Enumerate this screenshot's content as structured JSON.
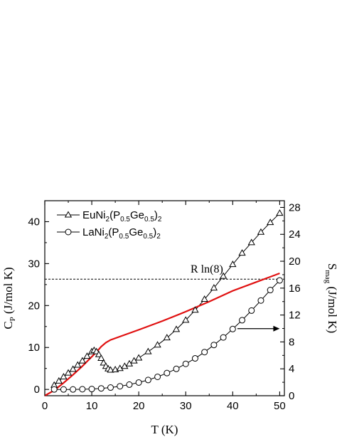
{
  "chart_data": {
    "type": "line",
    "xlabel": {
      "main": "T (K)"
    },
    "ylabel_left": {
      "main": "C",
      "sub": "P",
      "rest": " (J/mol K)"
    },
    "ylabel_right": {
      "main": "S",
      "sub": "mag",
      "rest": " (J/mol K)"
    },
    "xlim": [
      0,
      51
    ],
    "ylim_left": [
      -1.5,
      45
    ],
    "ylim_right": [
      0,
      29
    ],
    "x_ticks": [
      0,
      10,
      20,
      30,
      40,
      50
    ],
    "y_left_ticks": [
      0,
      10,
      20,
      30,
      40
    ],
    "y_right_ticks": [
      0,
      4,
      8,
      12,
      16,
      20,
      24,
      28
    ],
    "x_tick_labels": [
      "0",
      "10",
      "20",
      "30",
      "40",
      "50"
    ],
    "y_left_tick_labels": [
      "0",
      "10",
      "20",
      "30",
      "40"
    ],
    "y_right_tick_labels": [
      "0",
      "4",
      "8",
      "12",
      "16",
      "20",
      "24",
      "28"
    ],
    "reference_line": {
      "y": 26.3,
      "label": "R ln(8)"
    },
    "arrow_annotation": {
      "from_x": 41,
      "to_x": 50,
      "y": 14.5,
      "direction": "right-axis"
    },
    "legend": {
      "placement": "top-left",
      "entries": [
        {
          "prefix": "EuNi",
          "s1": "2",
          "mid1": "(P",
          "s2": "0.5",
          "mid2": "Ge",
          "s3": "0.5",
          "mid3": ")",
          "s4": "2",
          "marker": "triangle"
        },
        {
          "prefix": "LaNi",
          "s1": "2",
          "mid1": "(P",
          "s2": "0.5",
          "mid2": "Ge",
          "s3": "0.5",
          "mid3": ")",
          "s4": "2",
          "marker": "circle"
        }
      ]
    },
    "series": [
      {
        "marker": "triangle",
        "axis": "left",
        "x": [
          2,
          3,
          4,
          5,
          6,
          7,
          8,
          9,
          10,
          10.5,
          11,
          11.5,
          12,
          12.5,
          13,
          13.5,
          14,
          15,
          16,
          17,
          18,
          19,
          20,
          22,
          24,
          26,
          28,
          30,
          32,
          34,
          36,
          38,
          40,
          42,
          44,
          46,
          48,
          50
        ],
        "y": [
          1.0,
          2.0,
          3.0,
          3.9,
          4.8,
          5.8,
          6.8,
          7.9,
          9.0,
          9.3,
          9.0,
          8.3,
          7.4,
          6.3,
          5.5,
          4.9,
          4.6,
          4.7,
          5.0,
          5.5,
          6.1,
          6.8,
          7.5,
          9.0,
          10.6,
          12.3,
          14.3,
          16.5,
          18.9,
          21.5,
          24.2,
          27.0,
          29.8,
          32.5,
          35.0,
          37.5,
          39.8,
          42.0
        ]
      },
      {
        "marker": "circle",
        "axis": "left",
        "x": [
          2,
          4,
          6,
          8,
          10,
          12,
          14,
          16,
          18,
          20,
          22,
          24,
          26,
          28,
          30,
          32,
          34,
          36,
          38,
          40,
          42,
          44,
          46,
          48,
          50
        ],
        "y": [
          0.0,
          0.0,
          0.0,
          0.05,
          0.1,
          0.25,
          0.45,
          0.75,
          1.15,
          1.65,
          2.25,
          3.0,
          3.9,
          4.9,
          6.1,
          7.4,
          8.9,
          10.6,
          12.4,
          14.4,
          16.5,
          18.8,
          21.2,
          23.7,
          26.0
        ]
      },
      {
        "marker": "none",
        "axis": "right",
        "color": "#e01010",
        "x": [
          0,
          2,
          4,
          6,
          8,
          10,
          11,
          12,
          13,
          14,
          16,
          20,
          25,
          30,
          35,
          40,
          45,
          50
        ],
        "y": [
          0,
          0.8,
          1.9,
          3.1,
          4.4,
          5.8,
          6.5,
          7.3,
          7.9,
          8.3,
          8.8,
          9.8,
          11.1,
          12.5,
          14.0,
          15.6,
          16.9,
          18.2
        ]
      }
    ]
  }
}
